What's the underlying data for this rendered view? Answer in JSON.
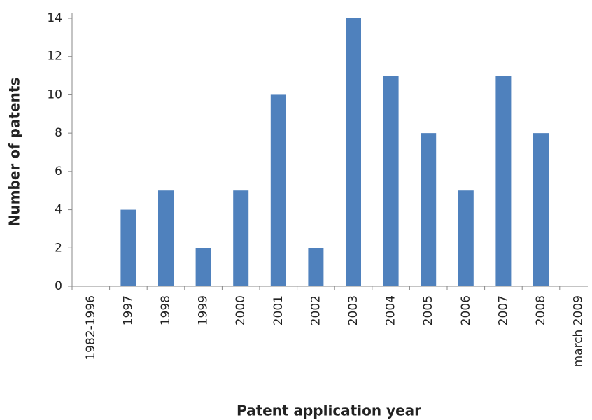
{
  "chart_data": {
    "type": "bar",
    "x_label": "Patent application year",
    "y_label": "Number of patents",
    "categories": [
      "1982-1996",
      "1997",
      "1998",
      "1999",
      "2000",
      "2001",
      "2002",
      "2003",
      "2004",
      "2005",
      "2006",
      "2007",
      "2008",
      "march 2009"
    ],
    "values": [
      0,
      4,
      5,
      2,
      5,
      10,
      2,
      14,
      11,
      8,
      5,
      11,
      8,
      0
    ],
    "color": "#4f81bd",
    "ylim": [
      0,
      14
    ],
    "yticks": [
      0,
      2,
      4,
      6,
      8,
      10,
      12,
      14
    ],
    "grid": false
  }
}
